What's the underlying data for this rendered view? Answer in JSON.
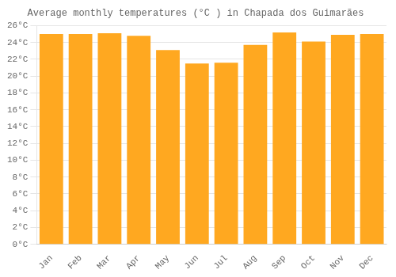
{
  "chart_data": {
    "type": "bar",
    "title": "Average monthly temperatures (°C ) in Chapada dos Guimarães",
    "categories": [
      "Jan",
      "Feb",
      "Mar",
      "Apr",
      "May",
      "Jun",
      "Jul",
      "Aug",
      "Sep",
      "Oct",
      "Nov",
      "Dec"
    ],
    "values": [
      25.0,
      25.0,
      25.1,
      24.8,
      23.1,
      21.5,
      21.6,
      23.7,
      25.2,
      24.1,
      24.9,
      25.0
    ],
    "color": "#FFA820",
    "ylim": [
      0,
      26
    ],
    "yticks": [
      {
        "value": 0,
        "label": "0°C"
      },
      {
        "value": 2,
        "label": "2°C"
      },
      {
        "value": 4,
        "label": "4°C"
      },
      {
        "value": 6,
        "label": "6°C"
      },
      {
        "value": 8,
        "label": "8°C"
      },
      {
        "value": 10,
        "label": "10°C"
      },
      {
        "value": 12,
        "label": "12°C"
      },
      {
        "value": 14,
        "label": "14°C"
      },
      {
        "value": 16,
        "label": "16°C"
      },
      {
        "value": 18,
        "label": "18°C"
      },
      {
        "value": 20,
        "label": "20°C"
      },
      {
        "value": 22,
        "label": "22°C"
      },
      {
        "value": 24,
        "label": "24°C"
      },
      {
        "value": 26,
        "label": "26°C"
      }
    ],
    "grid": true
  }
}
